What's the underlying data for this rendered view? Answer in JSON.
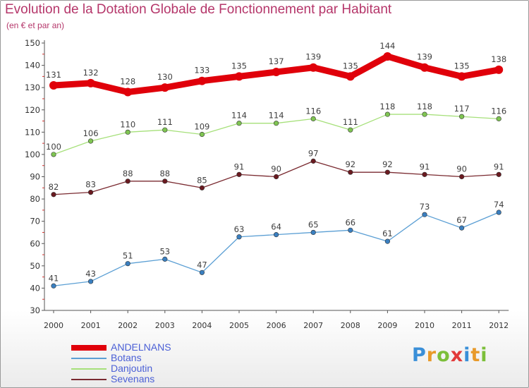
{
  "title": "Evolution de la Dotation Globale de Fonctionnement par Habitant",
  "subtitle": "(en € et par an)",
  "logo": {
    "text": "Proxiti",
    "letters": [
      {
        "char": "P",
        "color": "#3a8fd8"
      },
      {
        "char": "r",
        "color": "#e89a2a"
      },
      {
        "char": "o",
        "color": "#7cbf3a"
      },
      {
        "char": "x",
        "color": "#e23a3a"
      },
      {
        "char": "i",
        "color": "#3a8fd8"
      },
      {
        "char": "t",
        "color": "#e89a2a"
      },
      {
        "char": "i",
        "color": "#7cbf3a"
      }
    ]
  },
  "chart_data": {
    "type": "line",
    "title": "Evolution de la Dotation Globale de Fonctionnement par Habitant",
    "subtitle": "(en € et par an)",
    "xlabel": "",
    "ylabel": "",
    "ylim": [
      30,
      150
    ],
    "yticks": [
      30,
      40,
      50,
      60,
      70,
      80,
      90,
      100,
      110,
      120,
      130,
      140,
      150
    ],
    "grid": false,
    "legend_position": "bottom-left",
    "categories": [
      "2000",
      "2001",
      "2002",
      "2003",
      "2004",
      "2005",
      "2006",
      "2007",
      "2008",
      "2009",
      "2010",
      "2011",
      "2012"
    ],
    "series": [
      {
        "name": "ANDELNANS",
        "color": "#e0000a",
        "marker": "#e0000a",
        "emphasis": true,
        "values": [
          131,
          132,
          128,
          130,
          133,
          135,
          137,
          139,
          135,
          144,
          139,
          135,
          138
        ]
      },
      {
        "name": "Botans",
        "color": "#5b9fd4",
        "marker": "#3a7fc0",
        "emphasis": false,
        "values": [
          41,
          43,
          51,
          53,
          47,
          63,
          64,
          65,
          66,
          61,
          73,
          67,
          74
        ]
      },
      {
        "name": "Danjoutin",
        "color": "#a6e07a",
        "marker": "#7fc552",
        "emphasis": false,
        "values": [
          100,
          106,
          110,
          111,
          109,
          114,
          114,
          116,
          111,
          118,
          118,
          117,
          116
        ]
      },
      {
        "name": "Sevenans",
        "color": "#7a2a30",
        "marker": "#6a1a20",
        "emphasis": false,
        "values": [
          82,
          83,
          88,
          88,
          85,
          91,
          90,
          97,
          92,
          92,
          91,
          90,
          91
        ]
      }
    ]
  }
}
